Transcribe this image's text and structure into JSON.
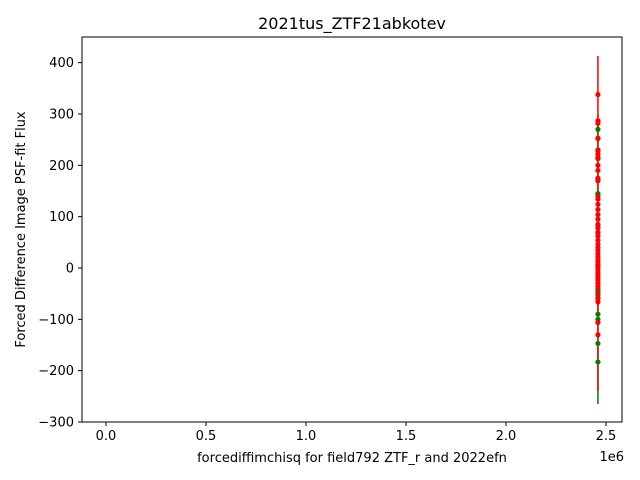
{
  "chart_data": {
    "type": "scatter",
    "title": "2021tus_ZTF21abkotev",
    "xlabel": "forcediffimchisq for field792 ZTF_r and 2022efn",
    "ylabel": "Forced Difference Image PSF-fit Flux",
    "x_offset_label": "1e6",
    "xlim": [
      -120000,
      2580000
    ],
    "ylim": [
      -300,
      450
    ],
    "x_ticks": [
      0,
      500000,
      1000000,
      1500000,
      2000000,
      2500000
    ],
    "x_tick_labels": [
      "0.0",
      "0.5",
      "1.0",
      "1.5",
      "2.0",
      "2.5"
    ],
    "y_ticks": [
      -300,
      -200,
      -100,
      0,
      100,
      200,
      300,
      400
    ],
    "y_tick_labels": [
      "−300",
      "−200",
      "−100",
      "0",
      "100",
      "200",
      "300",
      "400"
    ],
    "grid": false,
    "series": [
      {
        "color": "#ff0000",
        "x": 2459700,
        "y": [
          338,
          287,
          282,
          252,
          230,
          222,
          216,
          213,
          200,
          190,
          175,
          170,
          140,
          134,
          124,
          114,
          104,
          95,
          85,
          78,
          70,
          62,
          54,
          46,
          40,
          34,
          28,
          22,
          16,
          11,
          6,
          2,
          -3,
          -8,
          -13,
          -18,
          -23,
          -29,
          -35,
          -40,
          -52,
          -60,
          -66,
          -106,
          -130
        ],
        "err_low": -240,
        "err_high": 413
      },
      {
        "color": "#008000",
        "x": 2459700,
        "y": [
          270,
          253,
          228,
          174,
          145,
          140,
          82,
          68,
          6,
          -30,
          -44,
          -48,
          -58,
          -90,
          -100,
          -106,
          -147,
          -183
        ],
        "err_low": -265,
        "err_high": 300
      }
    ]
  }
}
